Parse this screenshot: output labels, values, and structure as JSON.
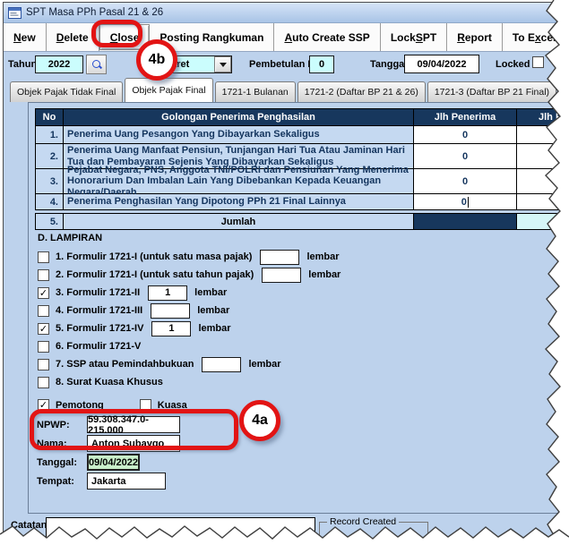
{
  "window": {
    "title": "SPT Masa PPh Pasal 21 & 26"
  },
  "toolbar": {
    "buttons": [
      {
        "label": "New",
        "u": 0
      },
      {
        "label": "Delete",
        "u": 0
      },
      {
        "label": "Close",
        "u": 0
      },
      {
        "label": "Posting Rangkuman",
        "u": 0
      },
      {
        "label": "Auto Create SSP",
        "u": 0
      },
      {
        "label": "Lock SPT",
        "u": 5
      },
      {
        "label": "Report",
        "u": 0
      },
      {
        "label": "To Excel",
        "u": 4
      }
    ]
  },
  "filters": {
    "tahun_label": "Tahun:",
    "tahun_value": "2022",
    "masa_value": "Maret",
    "pembetulan_label": "Pembetulan Ke:",
    "pembetulan_value": "0",
    "tanggal_label": "Tanggal:",
    "tanggal_value": "09/04/2022",
    "locked_label": "Locked",
    "locked_checked": false
  },
  "tabs": [
    {
      "label": "Objek Pajak Tidak Final",
      "active": false
    },
    {
      "label": "Objek Pajak Final",
      "active": true
    },
    {
      "label": "1721-1 Bulanan",
      "active": false
    },
    {
      "label": "1721-2 (Daftar BP 21 & 26)",
      "active": false
    },
    {
      "label": "1721-3 (Daftar BP 21 Final)",
      "active": false
    },
    {
      "label": "172",
      "active": false
    }
  ],
  "table": {
    "headers": [
      "No",
      "Golongan Penerima Penghasilan",
      "Jlh Penerima",
      "Jlh P"
    ],
    "rows": [
      {
        "no": "1.",
        "desc": "Penerima Uang Pesangon Yang Dibayarkan Sekaligus",
        "value": "0",
        "caret": false
      },
      {
        "no": "2.",
        "desc": "Penerima Uang Manfaat Pensiun, Tunjangan Hari Tua Atau Jaminan Hari Tua dan Pembayaran Sejenis Yang Dibayarkan Sekaligus",
        "value": "0",
        "caret": false
      },
      {
        "no": "3.",
        "desc": "Pejabat Negara, PNS, Anggota TNI/POLRI dan Pensiunan Yang Menerima Honorarium Dan Imbalan Lain Yang Dibebankan Kepada Keuangan Negara/Daerah",
        "value": "0",
        "caret": false
      },
      {
        "no": "4.",
        "desc": "Penerima Penghasilan Yang Dipotong PPh 21 Final Lainnya",
        "value": "0",
        "caret": true
      }
    ],
    "jumlah": {
      "no": "5.",
      "label": "Jumlah"
    }
  },
  "lampiran": {
    "heading": "D. LAMPIRAN",
    "items": [
      {
        "checked": false,
        "label": "1. Formulir 1721-I (untuk satu masa pajak)",
        "has_input": true,
        "value": "",
        "suffix": "lembar"
      },
      {
        "checked": false,
        "label": "2. Formulir 1721-I (untuk satu tahun pajak)",
        "has_input": true,
        "value": "",
        "suffix": "lembar"
      },
      {
        "checked": true,
        "label": "3. Formulir 1721-II",
        "has_input": true,
        "value": "1",
        "suffix": "lembar"
      },
      {
        "checked": false,
        "label": "4. Formulir 1721-III",
        "has_input": true,
        "value": "",
        "suffix": "lembar"
      },
      {
        "checked": true,
        "label": "5. Formulir 1721-IV",
        "has_input": true,
        "value": "1",
        "suffix": "lembar"
      },
      {
        "checked": false,
        "label": "6. Formulir 1721-V",
        "has_input": false,
        "value": "",
        "suffix": ""
      },
      {
        "checked": false,
        "label": "7. SSP atau Pemindahbukuan",
        "has_input": true,
        "value": "",
        "suffix": "lembar"
      },
      {
        "checked": false,
        "label": "8. Surat Kuasa Khusus",
        "has_input": false,
        "value": "",
        "suffix": ""
      }
    ]
  },
  "signer": {
    "pemotong_label": "Pemotong",
    "pemotong_checked": true,
    "kuasa_label": "Kuasa",
    "kuasa_checked": false,
    "fields": [
      {
        "label": "NPWP:",
        "value": "59.308.347.0-215.000"
      },
      {
        "label": "Nama:",
        "value": "Anton Subaygo"
      },
      {
        "label": "Tanggal:",
        "value": "09/04/2022"
      },
      {
        "label": "Tempat:",
        "value": "Jakarta"
      }
    ]
  },
  "footer": {
    "catatan_label": "Catatan",
    "record_created_label": "Record Created"
  },
  "annotations": {
    "balloon_a": "4a",
    "balloon_b": "4b"
  },
  "colors": {
    "annotation_red": "#e21414",
    "table_header_navy": "#17375d",
    "cyan_input": "#cbfdfd",
    "green_input": "#c9efca",
    "form_blue": "#bdd2ec",
    "pale_cyan": "#d5f6f8",
    "toolbar_fill_blue": "#4f74ae"
  }
}
